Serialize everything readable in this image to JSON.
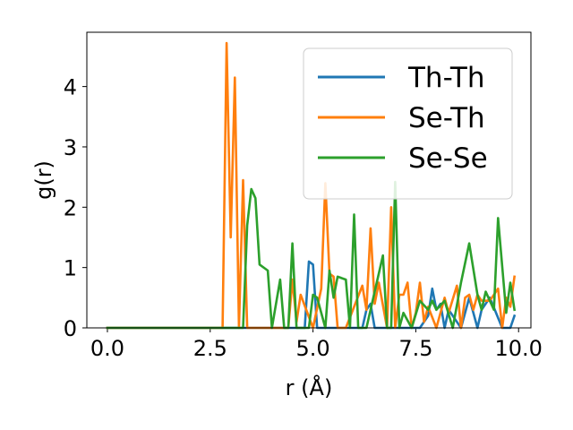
{
  "chart_data": {
    "type": "line",
    "title": "",
    "xlabel": "r (Å)",
    "ylabel": "g(r)",
    "xlim": [
      -0.5,
      10.3
    ],
    "ylim": [
      0,
      4.9
    ],
    "xticks": [
      "0.0",
      "2.5",
      "5.0",
      "7.5",
      "10.0"
    ],
    "xtick_values": [
      0,
      2.5,
      5,
      7.5,
      10
    ],
    "yticks": [
      "0",
      "1",
      "2",
      "3",
      "4"
    ],
    "ytick_values": [
      0,
      1,
      2,
      3,
      4
    ],
    "grid": false,
    "legend_position": "top-right",
    "series": [
      {
        "name": "Th-Th",
        "color": "#1f77b4",
        "x": [
          0,
          4.8,
          4.9,
          5.0,
          5.1,
          5.2,
          6.2,
          6.3,
          6.4,
          6.5,
          7.3,
          7.6,
          7.8,
          7.9,
          8.0,
          8.1,
          8.2,
          8.3,
          8.4,
          8.6,
          8.8,
          9.0,
          9.1,
          9.3,
          9.6,
          9.8,
          9.9
        ],
        "y": [
          0,
          0,
          1.1,
          1.05,
          0,
          0,
          0,
          0.3,
          0.4,
          0,
          0,
          0,
          0.2,
          0.65,
          0.3,
          0.4,
          0,
          0.3,
          0.2,
          0,
          0.5,
          0,
          0.3,
          0.5,
          0,
          0,
          0.2
        ]
      },
      {
        "name": "Se-Th",
        "color": "#ff7f0e",
        "x": [
          0,
          2.8,
          2.9,
          3.0,
          3.1,
          3.2,
          3.3,
          3.4,
          3.9,
          4.4,
          4.5,
          4.6,
          4.7,
          5.0,
          5.2,
          5.3,
          5.4,
          5.5,
          5.6,
          5.8,
          6.2,
          6.3,
          6.4,
          6.5,
          6.6,
          6.8,
          6.9,
          7.0,
          7.1,
          7.2,
          7.3,
          7.4,
          7.5,
          7.6,
          7.7,
          7.8,
          8.0,
          8.2,
          8.3,
          8.5,
          8.6,
          8.7,
          8.8,
          8.9,
          9.0,
          9.1,
          9.3,
          9.5,
          9.6,
          9.7,
          9.8,
          9.9
        ],
        "y": [
          0,
          0,
          4.72,
          1.5,
          4.15,
          0,
          2.45,
          0,
          0,
          0,
          0.8,
          0.1,
          0.55,
          0,
          0.65,
          2.4,
          0.9,
          0.85,
          0,
          0,
          0.7,
          0.3,
          1.65,
          0.4,
          0.75,
          0,
          2.0,
          0,
          0.55,
          0.55,
          0.75,
          0,
          0.25,
          0.75,
          0.1,
          0.35,
          0,
          0.5,
          0.25,
          0.7,
          0,
          0.5,
          0.55,
          0.3,
          0.55,
          0.45,
          0.45,
          0.65,
          0,
          0.5,
          0.35,
          0.85
        ]
      },
      {
        "name": "Se-Se",
        "color": "#2ca02c",
        "x": [
          0,
          3.3,
          3.4,
          3.5,
          3.6,
          3.7,
          3.9,
          4.0,
          4.2,
          4.3,
          4.4,
          4.5,
          4.6,
          4.9,
          5.0,
          5.1,
          5.3,
          5.4,
          5.5,
          5.6,
          5.8,
          5.9,
          6.0,
          6.1,
          6.3,
          6.5,
          6.7,
          6.8,
          6.9,
          7.0,
          7.1,
          7.2,
          7.4,
          7.6,
          7.8,
          7.9,
          8.0,
          8.2,
          8.4,
          8.6,
          8.8,
          9.0,
          9.1,
          9.2,
          9.4,
          9.5,
          9.7,
          9.8,
          9.9
        ],
        "y": [
          0,
          0,
          1.7,
          2.3,
          2.15,
          1.05,
          0.95,
          0,
          0.8,
          0,
          0,
          1.4,
          0,
          0,
          0.55,
          0.5,
          0,
          0.95,
          0.5,
          0.85,
          0.8,
          0,
          1.88,
          0,
          0,
          0.6,
          1.2,
          0,
          0,
          2.42,
          0,
          0.25,
          0,
          0.45,
          0.3,
          0.45,
          0.3,
          0.45,
          0,
          0.75,
          1.4,
          0.55,
          0.3,
          0.6,
          0.3,
          1.82,
          0.25,
          0.75,
          0.3
        ]
      }
    ]
  }
}
